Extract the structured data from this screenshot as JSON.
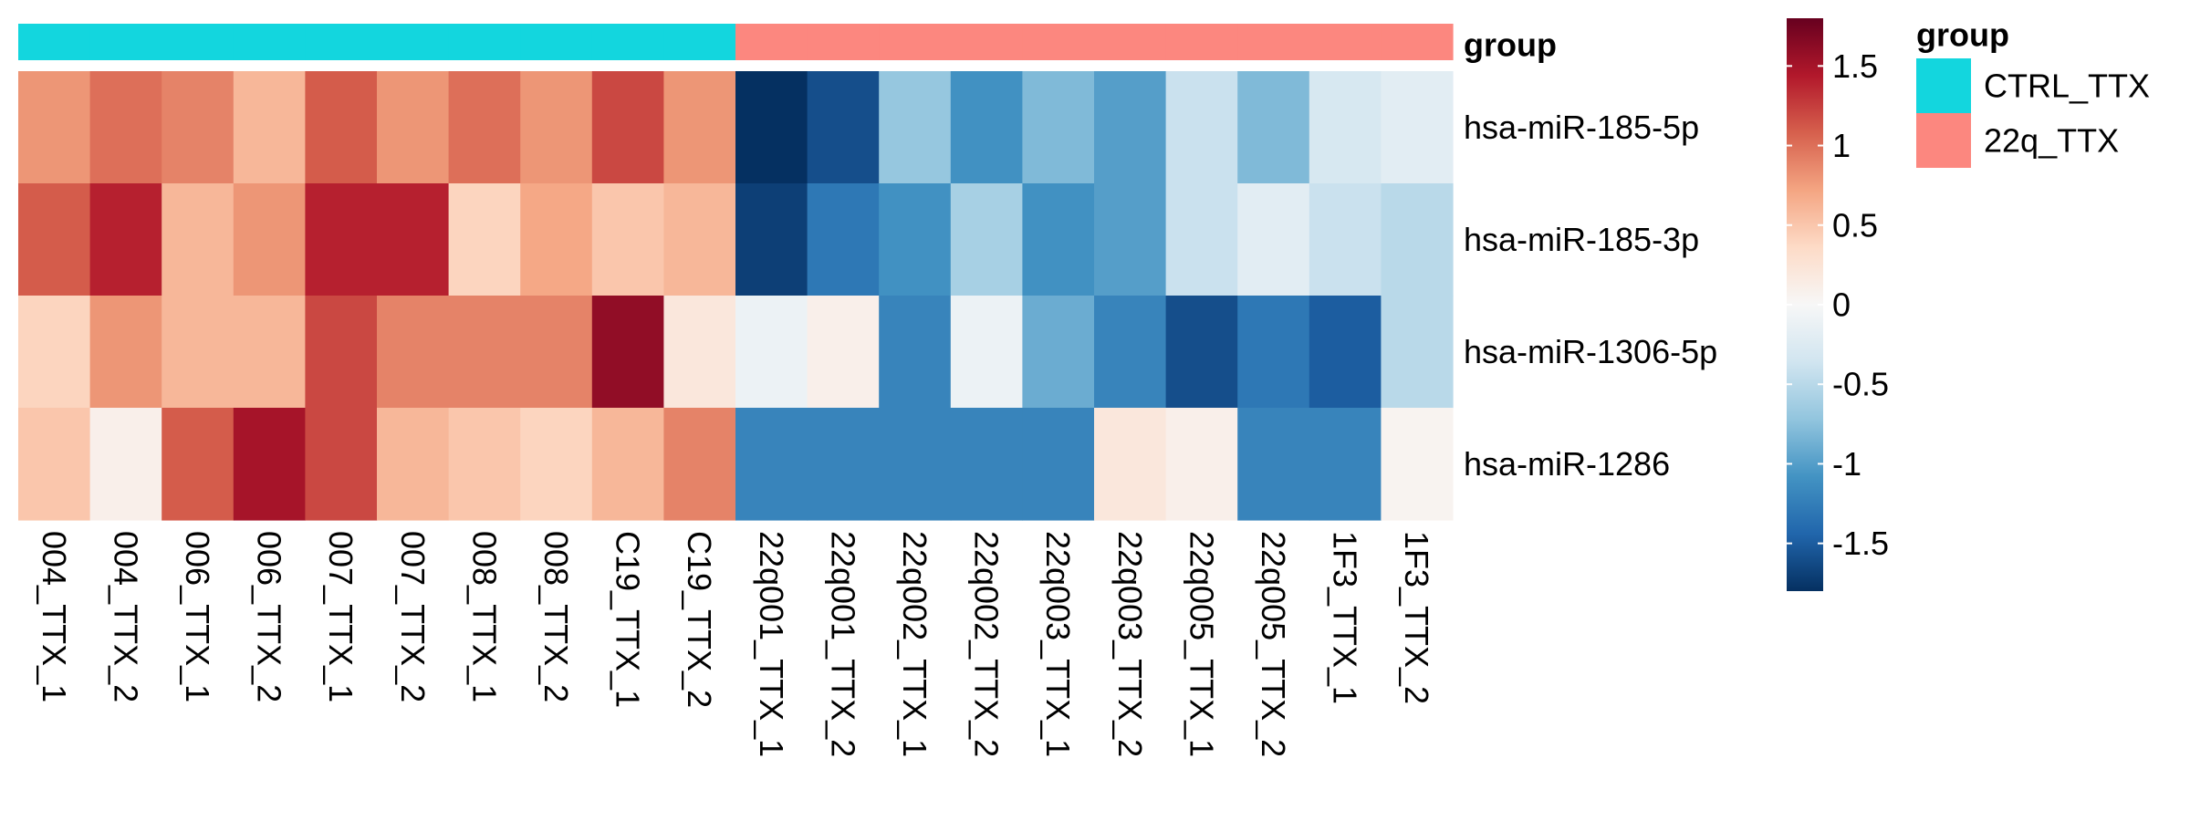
{
  "chart_data": {
    "type": "heatmap",
    "title": "",
    "annotation_title": "group",
    "columns": [
      "004_TTX_1",
      "004_TTX_2",
      "006_TTX_1",
      "006_TTX_2",
      "007_TTX_1",
      "007_TTX_2",
      "008_TTX_1",
      "008_TTX_2",
      "C19_TTX_1",
      "C19_TTX_2",
      "22q001_TTX_1",
      "22q001_TTX_2",
      "22q002_TTX_1",
      "22q002_TTX_2",
      "22q003_TTX_1",
      "22q003_TTX_2",
      "22q005_TTX_1",
      "22q005_TTX_2",
      "1F3_TTX_1",
      "1F3_TTX_2"
    ],
    "column_groups": [
      "CTRL_TTX",
      "CTRL_TTX",
      "CTRL_TTX",
      "CTRL_TTX",
      "CTRL_TTX",
      "CTRL_TTX",
      "CTRL_TTX",
      "CTRL_TTX",
      "CTRL_TTX",
      "CTRL_TTX",
      "22q_TTX",
      "22q_TTX",
      "22q_TTX",
      "22q_TTX",
      "22q_TTX",
      "22q_TTX",
      "22q_TTX",
      "22q_TTX",
      "22q_TTX",
      "22q_TTX"
    ],
    "rows": [
      "hsa-miR-185-5p",
      "hsa-miR-185-3p",
      "hsa-miR-1306-5p",
      "hsa-miR-1286"
    ],
    "values": [
      [
        0.8,
        1.0,
        0.9,
        0.6,
        1.1,
        0.8,
        1.0,
        0.8,
        1.2,
        0.8,
        -1.8,
        -1.6,
        -0.7,
        -1.1,
        -0.8,
        -1.0,
        -0.4,
        -0.8,
        -0.3,
        -0.2
      ],
      [
        1.1,
        1.4,
        0.6,
        0.8,
        1.4,
        1.4,
        0.4,
        0.7,
        0.5,
        0.6,
        -1.7,
        -1.3,
        -1.1,
        -0.6,
        -1.1,
        -1.0,
        -0.4,
        -0.2,
        -0.4,
        -0.5
      ],
      [
        0.4,
        0.8,
        0.6,
        0.6,
        1.2,
        0.9,
        0.9,
        0.9,
        1.6,
        0.2,
        -0.1,
        0.1,
        -1.2,
        -0.1,
        -0.9,
        -1.2,
        -1.6,
        -1.3,
        -1.5,
        -0.5
      ],
      [
        0.5,
        0.1,
        1.1,
        1.5,
        1.2,
        0.6,
        0.5,
        0.4,
        0.6,
        0.9,
        -1.2,
        -1.2,
        -1.2,
        -1.2,
        -1.2,
        0.2,
        0.1,
        -1.2,
        -1.2,
        0.05
      ]
    ],
    "color_scale": {
      "min": -1.8,
      "max": 1.8,
      "stops": [
        "#053061",
        "#2166AC",
        "#4393C3",
        "#92C5DE",
        "#D1E5F0",
        "#F7F7F7",
        "#FDDBC7",
        "#F4A582",
        "#D6604D",
        "#B2182B",
        "#67001F"
      ]
    },
    "legend_ticks": [
      "1.5",
      "1",
      "0.5",
      "0",
      "-0.5",
      "-1",
      "-1.5"
    ],
    "legend_tick_values": [
      1.5,
      1,
      0.5,
      0,
      -0.5,
      -1,
      -1.5
    ],
    "group_legend": {
      "title": "group",
      "items": [
        {
          "label": "CTRL_TTX",
          "color": "#13D6DE"
        },
        {
          "label": "22q_TTX",
          "color": "#FC877F"
        }
      ]
    }
  }
}
